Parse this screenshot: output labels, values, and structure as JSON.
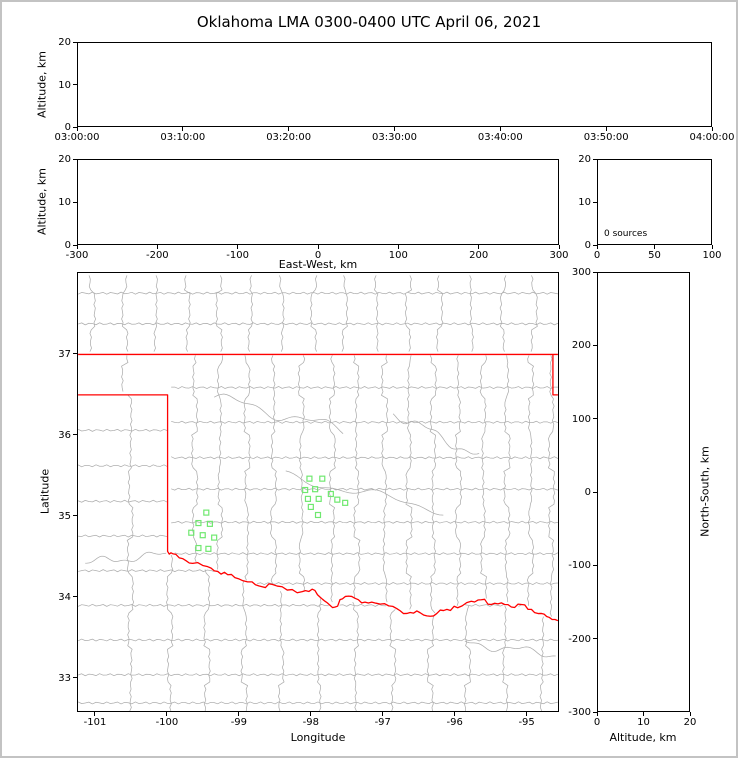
{
  "colors": {
    "state_border": "#ff0000",
    "county_line": "#adadad",
    "station": "#6fe86f",
    "axis": "#000000",
    "background": "#ffffff",
    "frame": "#c3c3c3"
  },
  "chart_data": {
    "type": "scatter",
    "title": "Oklahoma LMA 0300-0400 UTC April 06, 2021",
    "source_count": 0,
    "panels": {
      "time_height": {
        "ylabel": "Altitude, km",
        "ylim": [
          0,
          20
        ],
        "yticks": [
          {
            "v": 0,
            "label": "0"
          },
          {
            "v": 10,
            "label": "10"
          },
          {
            "v": 20,
            "label": "20"
          }
        ],
        "xlim": [
          0,
          3600
        ],
        "xticks": [
          {
            "v": 0,
            "label": "03:00:00"
          },
          {
            "v": 600,
            "label": "03:10:00"
          },
          {
            "v": 1200,
            "label": "03:20:00"
          },
          {
            "v": 1800,
            "label": "03:30:00"
          },
          {
            "v": 2400,
            "label": "03:40:00"
          },
          {
            "v": 3000,
            "label": "03:50:00"
          },
          {
            "v": 3600,
            "label": "04:00:00"
          }
        ],
        "points": []
      },
      "ew_height": {
        "ylabel": "Altitude, km",
        "xlabel": "East-West, km",
        "ylim": [
          0,
          20
        ],
        "yticks": [
          {
            "v": 0,
            "label": "0"
          },
          {
            "v": 10,
            "label": "10"
          },
          {
            "v": 20,
            "label": "20"
          }
        ],
        "xlim": [
          -300,
          300
        ],
        "xticks": [
          {
            "v": -300,
            "label": "-300"
          },
          {
            "v": -200,
            "label": "-200"
          },
          {
            "v": -100,
            "label": "-100"
          },
          {
            "v": 0,
            "label": "0"
          },
          {
            "v": 100,
            "label": "100"
          },
          {
            "v": 200,
            "label": "200"
          },
          {
            "v": 300,
            "label": "300"
          }
        ],
        "points": []
      },
      "histogram": {
        "annotation": "0 sources",
        "ylim": [
          0,
          20
        ],
        "yticks": [
          {
            "v": 0,
            "label": "0"
          },
          {
            "v": 10,
            "label": "10"
          },
          {
            "v": 20,
            "label": "20"
          }
        ],
        "xlim": [
          0,
          100
        ],
        "xticks": [
          {
            "v": 0,
            "label": "0"
          },
          {
            "v": 50,
            "label": "50"
          },
          {
            "v": 100,
            "label": "100"
          }
        ],
        "bars": []
      },
      "map": {
        "xlabel": "Longitude",
        "ylabel": "Latitude",
        "xlim": [
          -101.25,
          -94.55
        ],
        "ylim": [
          32.58,
          38.01
        ],
        "xticks": [
          {
            "v": -101,
            "label": "-101"
          },
          {
            "v": -100,
            "label": "-100"
          },
          {
            "v": -99,
            "label": "-99"
          },
          {
            "v": -98,
            "label": "-98"
          },
          {
            "v": -97,
            "label": "-97"
          },
          {
            "v": -96,
            "label": "-96"
          },
          {
            "v": -95,
            "label": "-95"
          }
        ],
        "yticks": [
          {
            "v": 33,
            "label": "33"
          },
          {
            "v": 34,
            "label": "34"
          },
          {
            "v": 35,
            "label": "35"
          },
          {
            "v": 36,
            "label": "36"
          },
          {
            "v": 37,
            "label": "37"
          }
        ]
      },
      "ns_height": {
        "xlabel": "Altitude, km",
        "ylabel": "North-South, km",
        "xlim": [
          0,
          20
        ],
        "xticks": [
          {
            "v": 0,
            "label": "0"
          },
          {
            "v": 10,
            "label": "10"
          },
          {
            "v": 20,
            "label": "20"
          }
        ],
        "ylim": [
          -300,
          300
        ],
        "yticks": [
          {
            "v": 300,
            "label": "300"
          },
          {
            "v": 200,
            "label": "200"
          },
          {
            "v": 100,
            "label": "100"
          },
          {
            "v": 0,
            "label": "0"
          },
          {
            "v": -100,
            "label": "-100"
          },
          {
            "v": -200,
            "label": "-200"
          },
          {
            "v": -300,
            "label": "-300"
          }
        ],
        "points": []
      }
    },
    "stations_lon_lat": [
      [
        -98.02,
        35.46
      ],
      [
        -97.84,
        35.46
      ],
      [
        -98.08,
        35.32
      ],
      [
        -97.94,
        35.33
      ],
      [
        -98.04,
        35.21
      ],
      [
        -97.89,
        35.21
      ],
      [
        -97.72,
        35.27
      ],
      [
        -98.0,
        35.11
      ],
      [
        -97.63,
        35.2
      ],
      [
        -97.52,
        35.16
      ],
      [
        -97.9,
        35.01
      ],
      [
        -99.46,
        35.04
      ],
      [
        -99.57,
        34.91
      ],
      [
        -99.41,
        34.9
      ],
      [
        -99.67,
        34.79
      ],
      [
        -99.51,
        34.76
      ],
      [
        -99.35,
        34.73
      ],
      [
        -99.57,
        34.6
      ],
      [
        -99.43,
        34.59
      ]
    ],
    "map_geometry": {
      "north_border_lat": 37.0,
      "panhandle_south_lat": 36.5,
      "west_border_lon": -100.0,
      "ne_corner_lon": -94.62,
      "red_river": [
        [
          -100.0,
          34.56
        ],
        [
          -99.93,
          34.53
        ],
        [
          -99.79,
          34.47
        ],
        [
          -99.65,
          34.41
        ],
        [
          -99.44,
          34.37
        ],
        [
          -99.3,
          34.31
        ],
        [
          -99.16,
          34.27
        ],
        [
          -99.01,
          34.22
        ],
        [
          -98.82,
          34.18
        ],
        [
          -98.68,
          34.12
        ],
        [
          -98.54,
          34.15
        ],
        [
          -98.33,
          34.08
        ],
        [
          -98.12,
          34.06
        ],
        [
          -97.98,
          34.09
        ],
        [
          -97.87,
          33.99
        ],
        [
          -97.77,
          33.92
        ],
        [
          -97.66,
          33.87
        ],
        [
          -97.56,
          33.97
        ],
        [
          -97.43,
          34.0
        ],
        [
          -97.29,
          33.92
        ],
        [
          -97.15,
          33.93
        ],
        [
          -96.97,
          33.91
        ],
        [
          -96.8,
          33.85
        ],
        [
          -96.66,
          33.79
        ],
        [
          -96.52,
          33.82
        ],
        [
          -96.38,
          33.76
        ],
        [
          -96.24,
          33.79
        ],
        [
          -96.1,
          33.84
        ],
        [
          -95.95,
          33.86
        ],
        [
          -95.76,
          33.94
        ],
        [
          -95.62,
          33.96
        ],
        [
          -95.48,
          33.9
        ],
        [
          -95.34,
          33.92
        ],
        [
          -95.2,
          33.87
        ],
        [
          -95.06,
          33.9
        ],
        [
          -94.92,
          33.84
        ],
        [
          -94.78,
          33.79
        ],
        [
          -94.67,
          33.74
        ],
        [
          -94.55,
          33.7
        ]
      ]
    }
  }
}
